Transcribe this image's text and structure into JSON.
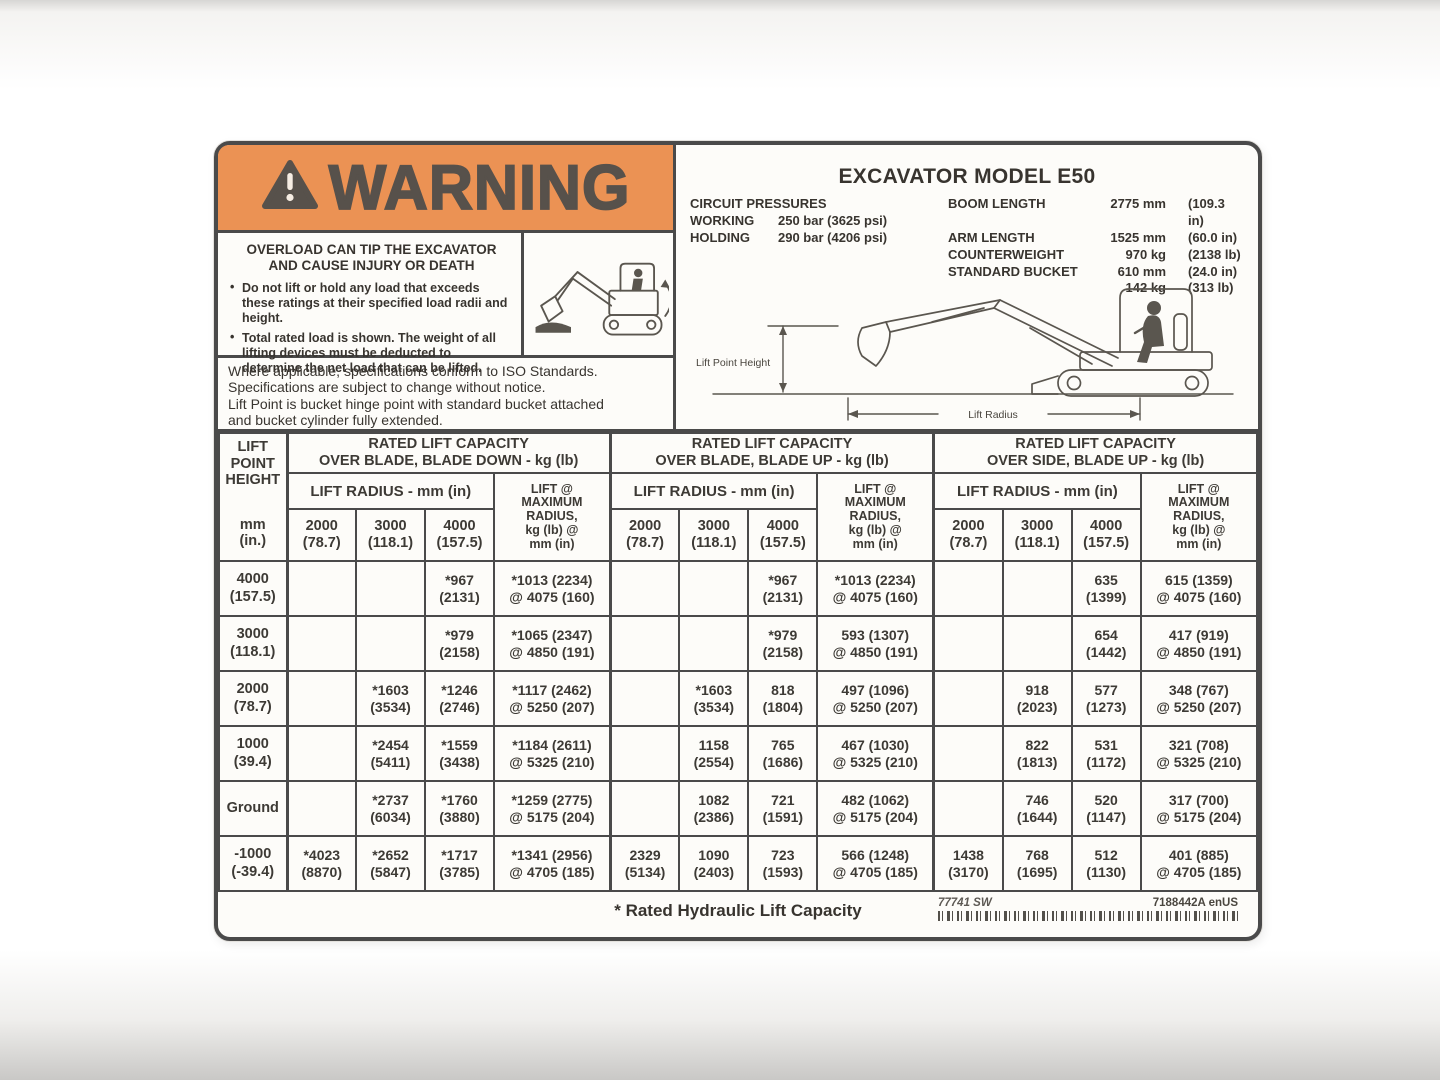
{
  "label": {
    "warning": {
      "banner_text": "WARNING",
      "heading": "OVERLOAD CAN TIP THE EXCAVATOR\nAND CAUSE INJURY OR DEATH",
      "bullets": [
        "Do not lift or hold any load that exceeds these ratings at their specified load radii and height.",
        "Total rated load is shown. The weight of all lifting devices must be deducted to determine the net load that can be lifted."
      ]
    },
    "iso_note": "Where applicable, specifications conform to ISO Standards.\nSpecifications are subject to change without notice.\nLift Point is bucket hinge point with standard bucket attached\nand bucket cylinder fully extended.",
    "model": {
      "title": "EXCAVATOR MODEL E50",
      "circuit_heading": "CIRCUIT PRESSURES",
      "circuit_rows": [
        {
          "label": "WORKING",
          "value": "250 bar (3625 psi)"
        },
        {
          "label": "HOLDING",
          "value": "290 bar (4206 psi)"
        }
      ],
      "specs": [
        {
          "label": "BOOM LENGTH",
          "metric": "2775 mm",
          "imperial": "(109.3 in)"
        },
        {
          "label": "ARM LENGTH",
          "metric": "1525 mm",
          "imperial": "(60.0 in)"
        },
        {
          "label": "COUNTERWEIGHT",
          "metric": "970 kg",
          "imperial": "(2138 lb)"
        },
        {
          "label": "STANDARD BUCKET",
          "metric": "610 mm",
          "imperial": "(24.0 in)"
        },
        {
          "label": "",
          "metric": "142 kg",
          "imperial": "(313 lb)"
        }
      ],
      "diagram_labels": {
        "height": "Lift Point Height",
        "radius": "Lift Radius"
      }
    },
    "capacity_table": {
      "corner_title": "LIFT\nPOINT\nHEIGHT",
      "corner_units": "mm\n(in.)",
      "groups": [
        {
          "title": "RATED LIFT CAPACITY\nOVER BLADE, BLADE DOWN - kg (lb)",
          "radius_header": "LIFT RADIUS - mm (in)",
          "max_header": "LIFT @\nMAXIMUM\nRADIUS,\nkg (lb) @\nmm (in)",
          "radius_cols": [
            "2000\n(78.7)",
            "3000\n(118.1)",
            "4000\n(157.5)"
          ]
        },
        {
          "title": "RATED LIFT CAPACITY\nOVER BLADE, BLADE UP - kg (lb)",
          "radius_header": "LIFT RADIUS - mm (in)",
          "max_header": "LIFT @\nMAXIMUM\nRADIUS,\nkg (lb) @\nmm (in)",
          "radius_cols": [
            "2000\n(78.7)",
            "3000\n(118.1)",
            "4000\n(157.5)"
          ]
        },
        {
          "title": "RATED LIFT CAPACITY\nOVER SIDE, BLADE UP - kg (lb)",
          "radius_header": "LIFT RADIUS - mm (in)",
          "max_header": "LIFT @\nMAXIMUM\nRADIUS,\nkg (lb) @\nmm (in)",
          "radius_cols": [
            "2000\n(78.7)",
            "3000\n(118.1)",
            "4000\n(157.5)"
          ]
        }
      ],
      "rows": [
        {
          "height": "4000\n(157.5)",
          "cells": [
            "",
            "",
            "*967\n(2131)",
            "*1013 (2234)\n@ 4075 (160)",
            "",
            "",
            "*967\n(2131)",
            "*1013 (2234)\n@ 4075 (160)",
            "",
            "",
            "635\n(1399)",
            "615 (1359)\n@ 4075 (160)"
          ]
        },
        {
          "height": "3000\n(118.1)",
          "cells": [
            "",
            "",
            "*979\n(2158)",
            "*1065 (2347)\n@ 4850 (191)",
            "",
            "",
            "*979\n(2158)",
            "593 (1307)\n@ 4850 (191)",
            "",
            "",
            "654\n(1442)",
            "417 (919)\n@ 4850 (191)"
          ]
        },
        {
          "height": "2000\n(78.7)",
          "cells": [
            "",
            "*1603\n(3534)",
            "*1246\n(2746)",
            "*1117 (2462)\n@ 5250 (207)",
            "",
            "*1603\n(3534)",
            "818\n(1804)",
            "497 (1096)\n@ 5250 (207)",
            "",
            "918\n(2023)",
            "577\n(1273)",
            "348 (767)\n@ 5250 (207)"
          ]
        },
        {
          "height": "1000\n(39.4)",
          "cells": [
            "",
            "*2454\n(5411)",
            "*1559\n(3438)",
            "*1184 (2611)\n@ 5325 (210)",
            "",
            "1158\n(2554)",
            "765\n(1686)",
            "467 (1030)\n@ 5325 (210)",
            "",
            "822\n(1813)",
            "531\n(1172)",
            "321 (708)\n@ 5325 (210)"
          ]
        },
        {
          "height": "Ground",
          "cells": [
            "",
            "*2737\n(6034)",
            "*1760\n(3880)",
            "*1259 (2775)\n@ 5175 (204)",
            "",
            "1082\n(2386)",
            "721\n(1591)",
            "482 (1062)\n@ 5175 (204)",
            "",
            "746\n(1644)",
            "520\n(1147)",
            "317 (700)\n@ 5175 (204)"
          ]
        },
        {
          "height": "-1000\n(-39.4)",
          "cells": [
            "*4023\n(8870)",
            "*2652\n(5847)",
            "*1717\n(3785)",
            "*1341 (2956)\n@ 4705 (185)",
            "2329\n(5134)",
            "1090\n(2403)",
            "723\n(1593)",
            "566 (1248)\n@ 4705 (185)",
            "1438\n(3170)",
            "768\n(1695)",
            "512\n(1130)",
            "401 (885)\n@ 4705 (185)"
          ]
        }
      ]
    },
    "footer": {
      "note": "* Rated Hydraulic Lift Capacity",
      "code_left": "77741 SW",
      "code_right": "7188442A enUS"
    }
  }
}
